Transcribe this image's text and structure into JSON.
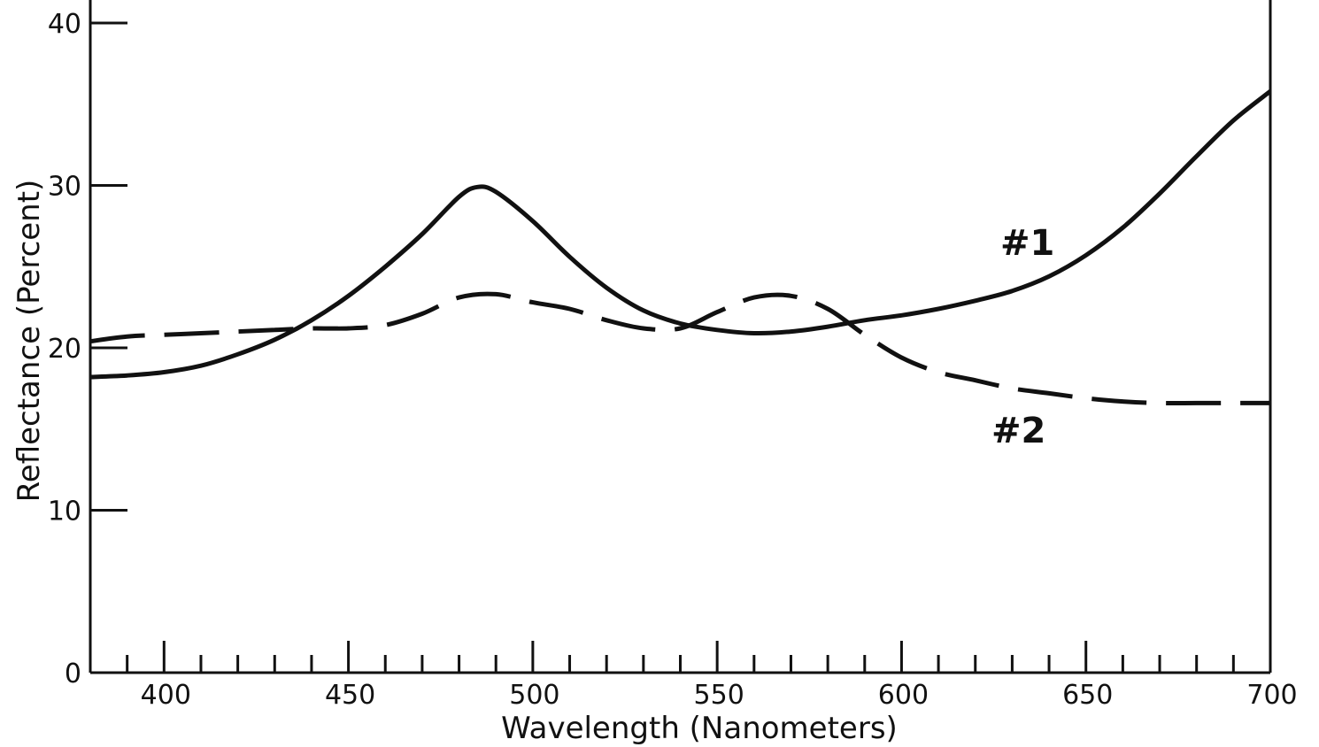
{
  "chart_data": {
    "type": "line",
    "title": "",
    "xlabel": "Wavelength (Nanometers)",
    "ylabel": "Reflectance (Percent)",
    "xlim": [
      380,
      700
    ],
    "ylim": [
      0,
      40
    ],
    "x_major_ticks": [
      400,
      450,
      500,
      550,
      600,
      650,
      700
    ],
    "x_minor_step": 10,
    "y_ticks": [
      0,
      10,
      20,
      30,
      40
    ],
    "grid": false,
    "colors": {
      "ink": "#111111"
    },
    "series": [
      {
        "name": "#1",
        "line_style": "solid",
        "x": [
          380,
          390,
          400,
          410,
          420,
          430,
          440,
          450,
          460,
          470,
          480,
          485,
          490,
          500,
          510,
          520,
          530,
          540,
          550,
          560,
          570,
          580,
          590,
          600,
          610,
          620,
          630,
          640,
          650,
          660,
          670,
          680,
          690,
          700
        ],
        "y": [
          18.2,
          18.3,
          18.5,
          18.9,
          19.6,
          20.5,
          21.7,
          23.2,
          25.0,
          27.0,
          29.3,
          29.9,
          29.6,
          27.8,
          25.6,
          23.7,
          22.3,
          21.5,
          21.1,
          20.9,
          21.0,
          21.3,
          21.7,
          22.0,
          22.4,
          22.9,
          23.5,
          24.4,
          25.7,
          27.4,
          29.5,
          31.8,
          34.0,
          35.8
        ]
      },
      {
        "name": "#2",
        "line_style": "dashed",
        "x": [
          380,
          390,
          400,
          410,
          420,
          430,
          440,
          450,
          460,
          470,
          480,
          490,
          500,
          510,
          520,
          530,
          540,
          550,
          560,
          570,
          580,
          590,
          600,
          610,
          620,
          630,
          640,
          650,
          660,
          670,
          680,
          690,
          700
        ],
        "y": [
          20.4,
          20.7,
          20.8,
          20.9,
          21.0,
          21.1,
          21.2,
          21.2,
          21.4,
          22.1,
          23.1,
          23.3,
          22.8,
          22.4,
          21.7,
          21.2,
          21.2,
          22.2,
          23.1,
          23.2,
          22.4,
          20.8,
          19.4,
          18.5,
          18.0,
          17.5,
          17.2,
          16.9,
          16.7,
          16.6,
          16.6,
          16.6,
          16.6
        ]
      }
    ]
  }
}
